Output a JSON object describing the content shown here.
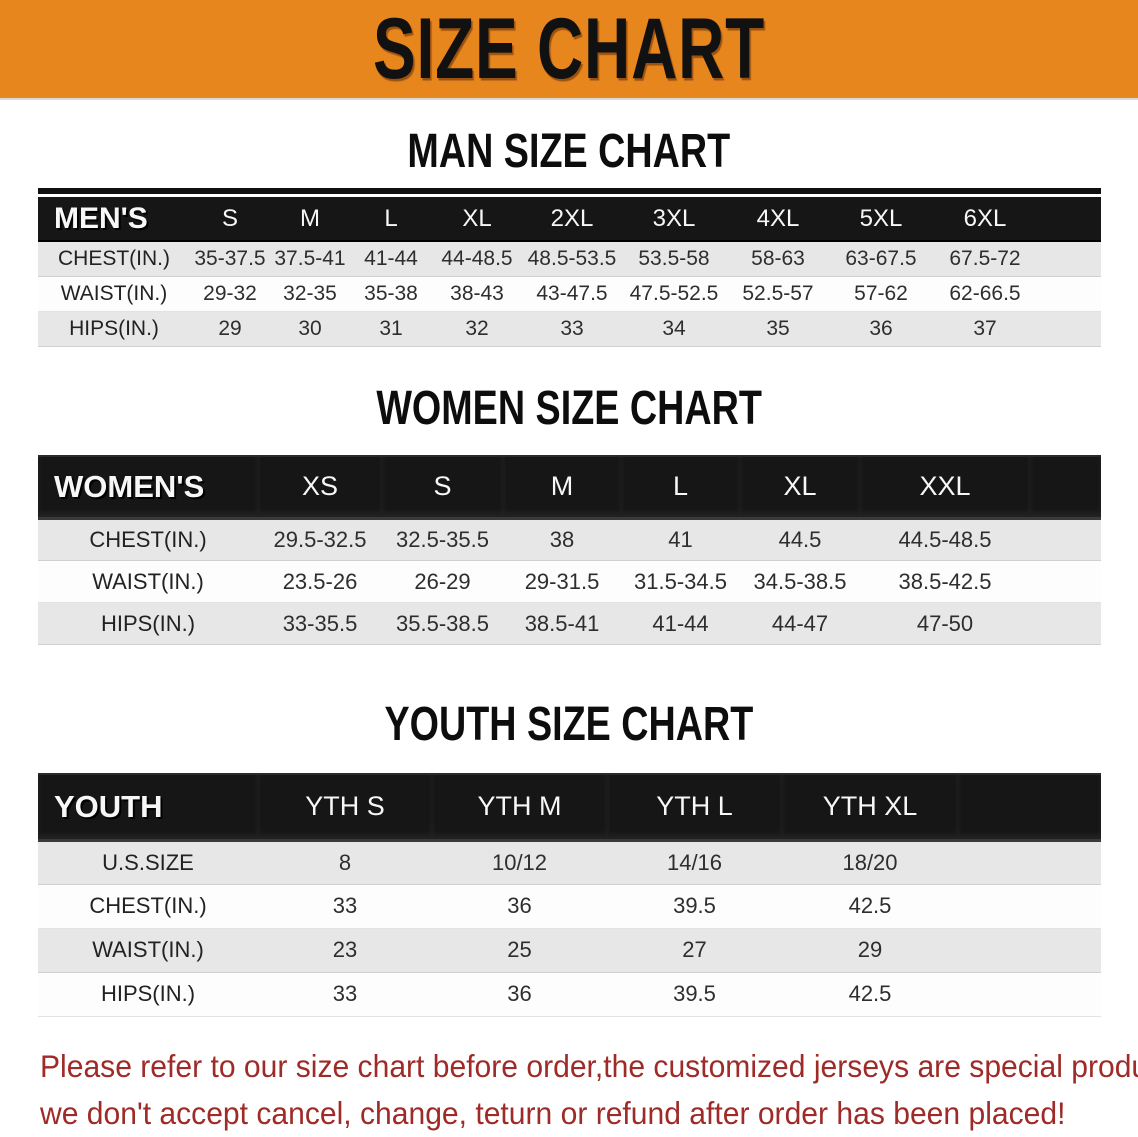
{
  "banner": {
    "title": "SIZE CHART",
    "bg_color": "#E8861E",
    "text_color": "#111111"
  },
  "sections": [
    {
      "heading": "MAN SIZE CHART",
      "header_label": "MEN'S",
      "columns": [
        "S",
        "M",
        "L",
        "XL",
        "2XL",
        "3XL",
        "4XL",
        "5XL",
        "6XL"
      ],
      "rows": [
        {
          "label": "CHEST(IN.)",
          "values": [
            "35-37.5",
            "37.5-41",
            "41-44",
            "44-48.5",
            "48.5-53.5",
            "53.5-58",
            "58-63",
            "63-67.5",
            "67.5-72"
          ]
        },
        {
          "label": "WAIST(IN.)",
          "values": [
            "29-32",
            "32-35",
            "35-38",
            "38-43",
            "43-47.5",
            "47.5-52.5",
            "52.5-57",
            "57-62",
            "62-66.5"
          ]
        },
        {
          "label": "HIPS(IN.)",
          "values": [
            "29",
            "30",
            "31",
            "32",
            "33",
            "34",
            "35",
            "36",
            "37"
          ]
        }
      ]
    },
    {
      "heading": "WOMEN SIZE CHART",
      "header_label": "WOMEN'S",
      "columns": [
        "XS",
        "S",
        "M",
        "L",
        "XL",
        "XXL"
      ],
      "rows": [
        {
          "label": "CHEST(IN.)",
          "values": [
            "29.5-32.5",
            "32.5-35.5",
            "38",
            "41",
            "44.5",
            "44.5-48.5"
          ]
        },
        {
          "label": "WAIST(IN.)",
          "values": [
            "23.5-26",
            "26-29",
            "29-31.5",
            "31.5-34.5",
            "34.5-38.5",
            "38.5-42.5"
          ]
        },
        {
          "label": "HIPS(IN.)",
          "values": [
            "33-35.5",
            "35.5-38.5",
            "38.5-41",
            "41-44",
            "44-47",
            "47-50"
          ]
        }
      ]
    },
    {
      "heading": "YOUTH SIZE CHART",
      "header_label": "YOUTH",
      "columns": [
        "YTH S",
        "YTH M",
        "YTH L",
        "YTH XL"
      ],
      "rows": [
        {
          "label": "U.S.SIZE",
          "values": [
            "8",
            "10/12",
            "14/16",
            "18/20"
          ]
        },
        {
          "label": "CHEST(IN.)",
          "values": [
            "33",
            "36",
            "39.5",
            "42.5"
          ]
        },
        {
          "label": "WAIST(IN.)",
          "values": [
            "23",
            "25",
            "27",
            "29"
          ]
        },
        {
          "label": "HIPS(IN.)",
          "values": [
            "33",
            "36",
            "39.5",
            "42.5"
          ]
        }
      ]
    }
  ],
  "footer": {
    "line1": "Please refer to our size chart before order,the customized jerseys are special products,",
    "line2": "we don't accept cancel, change, teturn or refund after order has been placed!",
    "text_color": "#9E2B28"
  }
}
